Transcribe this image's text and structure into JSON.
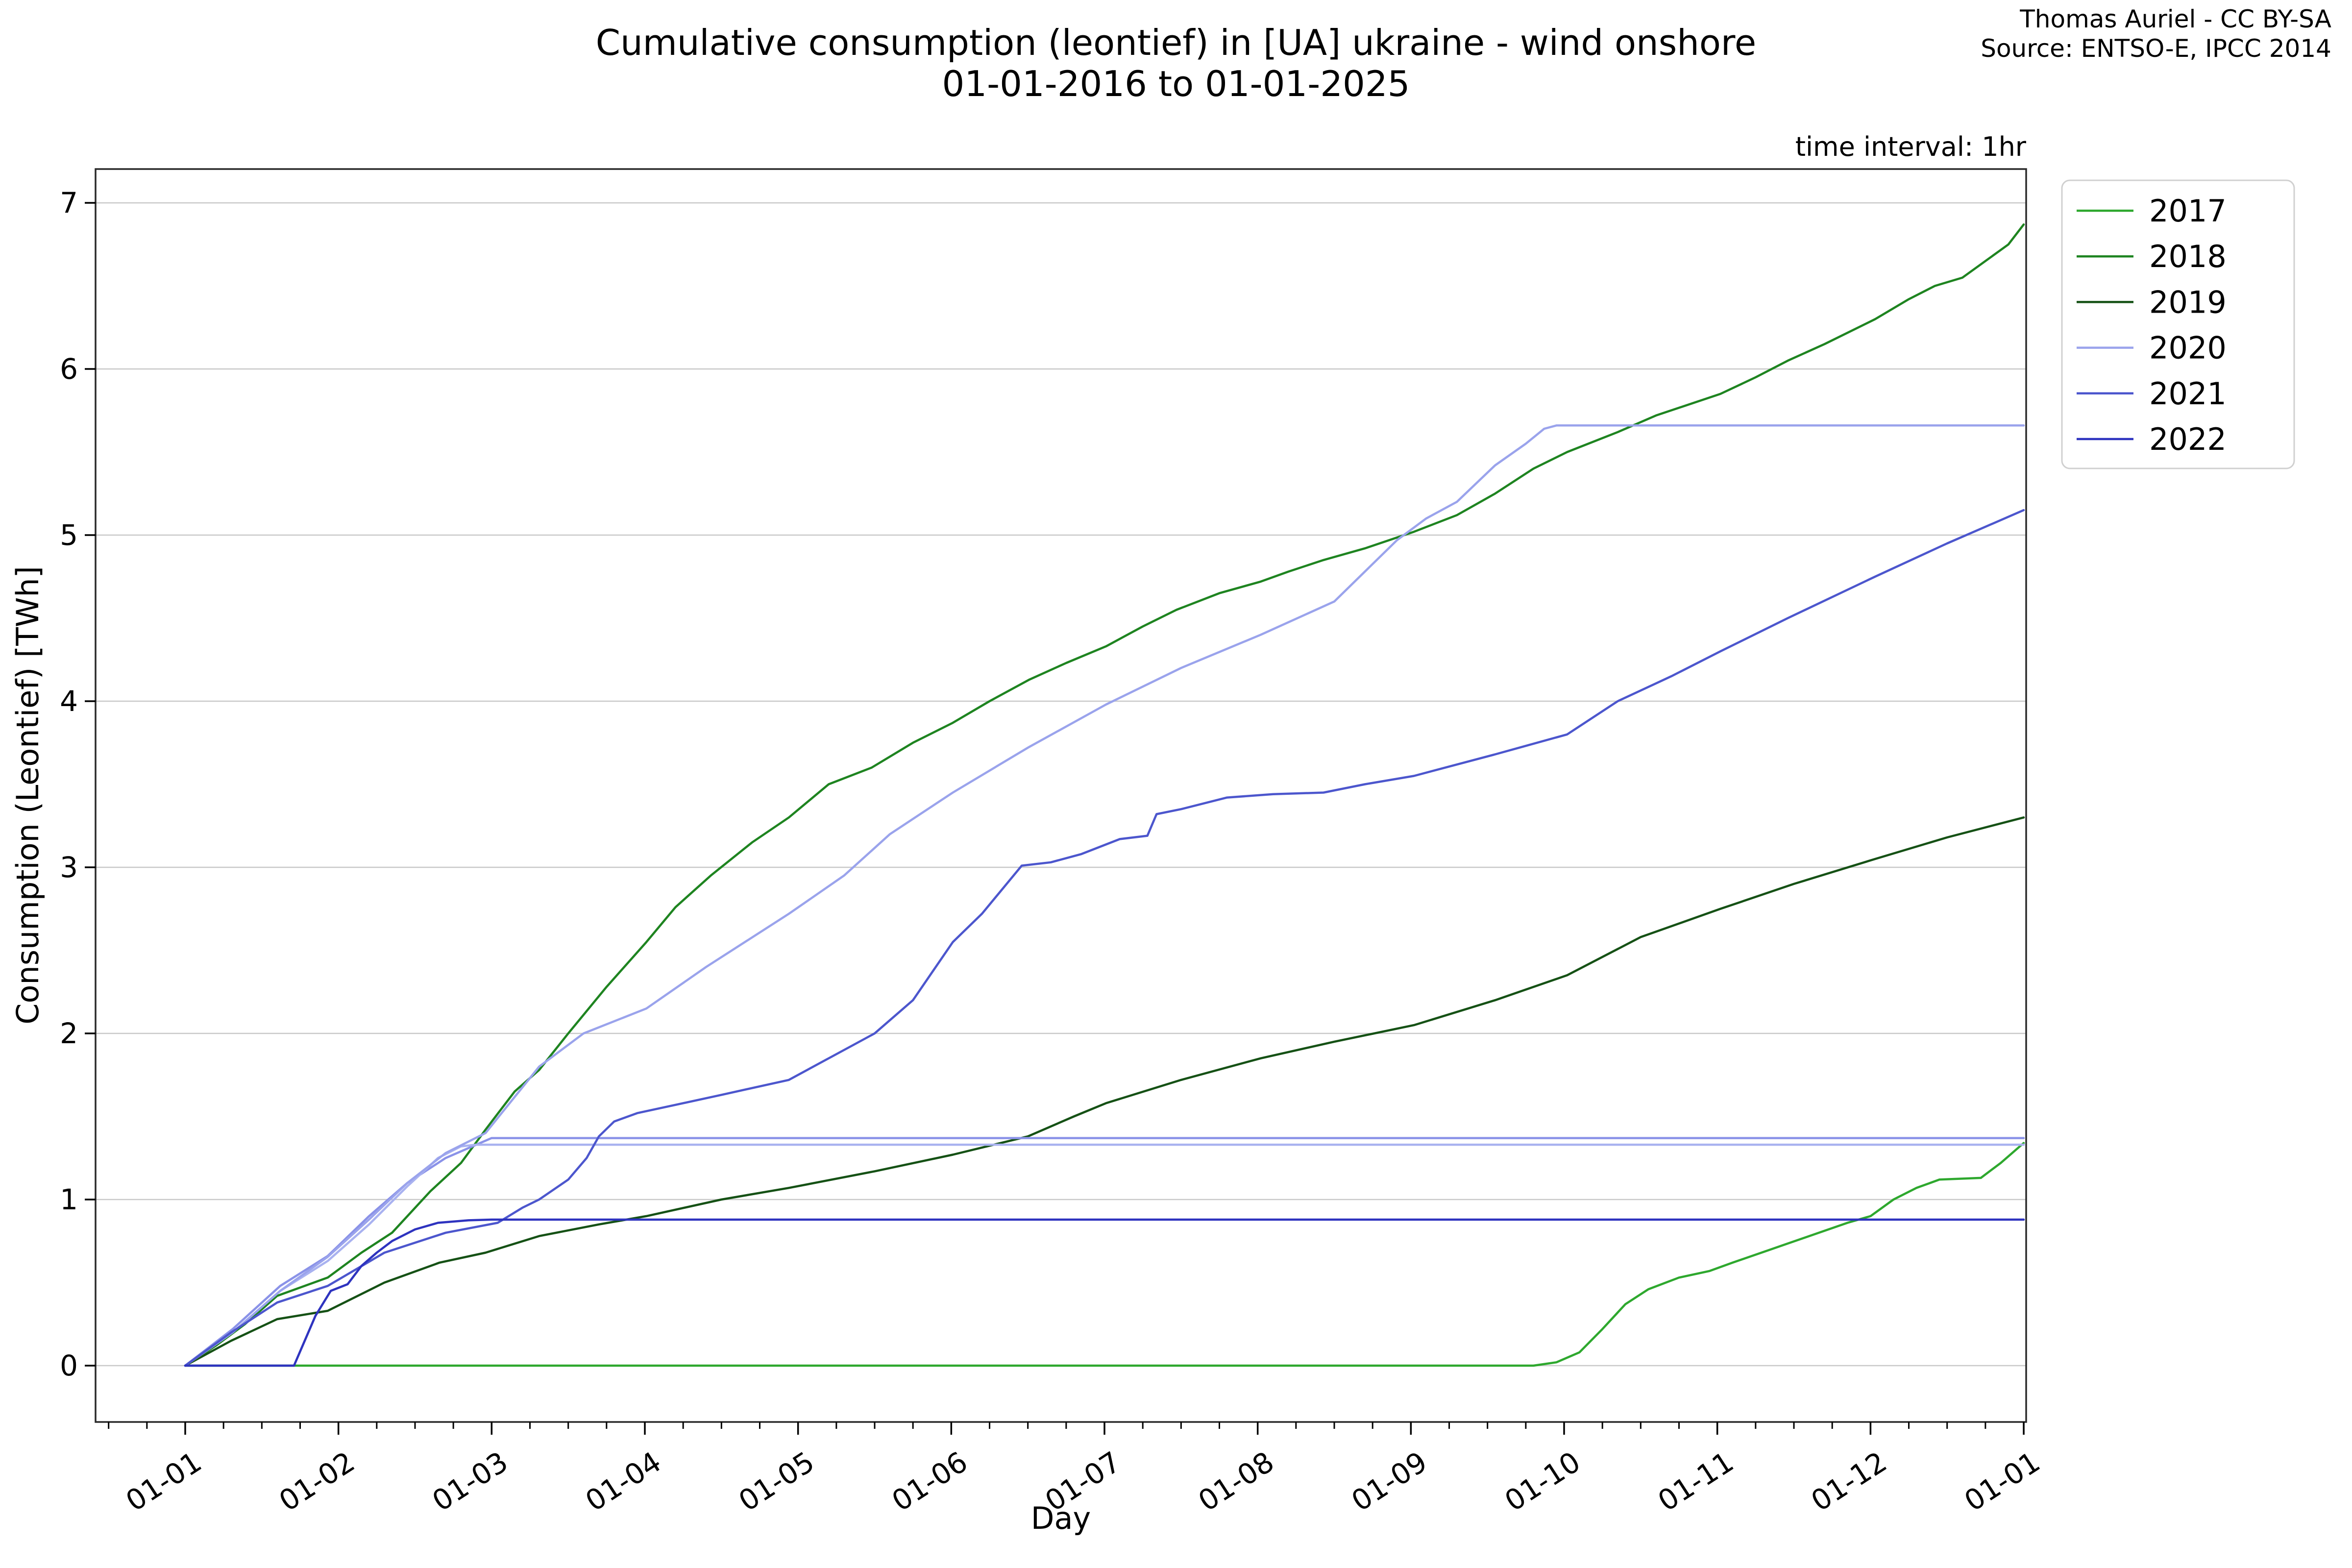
{
  "header": {
    "title_line1": "Cumulative consumption (leontief) in [UA] ukraine - wind onshore",
    "title_line2": "01-01-2016 to 01-01-2025",
    "attribution_line1": "Thomas Auriel - CC BY-SA",
    "attribution_line2": "Source: ENTSO-E, IPCC 2014",
    "time_interval_note": "time interval: 1hr"
  },
  "chart_data": {
    "type": "line",
    "title": "Cumulative consumption (leontief) in [UA] ukraine - wind onshore 01-01-2016 to 01-01-2025",
    "xlabel": "Day",
    "ylabel": "Consumption (Leontief) [TWh]",
    "x_unit": "months from Jan 1 (tick labels are month starts)",
    "x_tick_labels": [
      "01-01",
      "01-02",
      "01-03",
      "01-04",
      "01-05",
      "01-06",
      "01-07",
      "01-08",
      "01-09",
      "01-10",
      "01-11",
      "01-12",
      "01-01"
    ],
    "y_ticks": [
      0,
      1,
      2,
      3,
      4,
      5,
      6,
      7
    ],
    "ylim": [
      -0.34,
      7.2
    ],
    "xlim_months": [
      -0.585,
      12.016
    ],
    "grid": "horizontal",
    "grid_color": "#c9c9c9",
    "legend_position": "upper-right-outside",
    "legend": [
      {
        "label": "2017",
        "color": "#2ea82e"
      },
      {
        "label": "2018",
        "color": "#1e8420"
      },
      {
        "label": "2019",
        "color": "#155115"
      },
      {
        "label": "2020",
        "color": "#9aa3ec"
      },
      {
        "label": "2021",
        "color": "#4c56cd"
      },
      {
        "label": "2022",
        "color": "#2e33bf"
      }
    ],
    "series": [
      {
        "name": "2017",
        "color": "#2ea82e",
        "in_legend": true,
        "points": [
          [
            0,
            0
          ],
          [
            8.8,
            0
          ],
          [
            8.95,
            0.02
          ],
          [
            9.1,
            0.08
          ],
          [
            9.25,
            0.22
          ],
          [
            9.4,
            0.37
          ],
          [
            9.55,
            0.46
          ],
          [
            9.75,
            0.53
          ],
          [
            9.95,
            0.57
          ],
          [
            10.1,
            0.62
          ],
          [
            10.35,
            0.7
          ],
          [
            10.6,
            0.78
          ],
          [
            10.85,
            0.86
          ],
          [
            11.0,
            0.9
          ],
          [
            11.15,
            1.0
          ],
          [
            11.3,
            1.07
          ],
          [
            11.45,
            1.12
          ],
          [
            11.72,
            1.13
          ],
          [
            11.85,
            1.22
          ],
          [
            12,
            1.34
          ]
        ]
      },
      {
        "name": "2018",
        "color": "#1e8420",
        "in_legend": true,
        "points": [
          [
            0,
            0
          ],
          [
            0.2,
            0.12
          ],
          [
            0.39,
            0.25
          ],
          [
            0.6,
            0.42
          ],
          [
            0.93,
            0.53
          ],
          [
            1.15,
            0.68
          ],
          [
            1.35,
            0.8
          ],
          [
            1.6,
            1.05
          ],
          [
            1.8,
            1.22
          ],
          [
            1.96,
            1.42
          ],
          [
            2.15,
            1.65
          ],
          [
            2.31,
            1.78
          ],
          [
            2.5,
            2.0
          ],
          [
            2.75,
            2.28
          ],
          [
            3.01,
            2.55
          ],
          [
            3.2,
            2.76
          ],
          [
            3.43,
            2.95
          ],
          [
            3.7,
            3.15
          ],
          [
            3.94,
            3.3
          ],
          [
            4.2,
            3.5
          ],
          [
            4.48,
            3.6
          ],
          [
            4.75,
            3.75
          ],
          [
            5.01,
            3.87
          ],
          [
            5.25,
            4.0
          ],
          [
            5.51,
            4.13
          ],
          [
            5.75,
            4.23
          ],
          [
            6.01,
            4.33
          ],
          [
            6.25,
            4.45
          ],
          [
            6.47,
            4.55
          ],
          [
            6.75,
            4.65
          ],
          [
            7.02,
            4.72
          ],
          [
            7.2,
            4.78
          ],
          [
            7.43,
            4.85
          ],
          [
            7.7,
            4.92
          ],
          [
            8.02,
            5.02
          ],
          [
            8.3,
            5.12
          ],
          [
            8.55,
            5.25
          ],
          [
            8.8,
            5.4
          ],
          [
            9.02,
            5.5
          ],
          [
            9.35,
            5.62
          ],
          [
            9.6,
            5.72
          ],
          [
            10.02,
            5.85
          ],
          [
            10.25,
            5.95
          ],
          [
            10.46,
            6.05
          ],
          [
            10.7,
            6.15
          ],
          [
            11.03,
            6.3
          ],
          [
            11.25,
            6.42
          ],
          [
            11.42,
            6.5
          ],
          [
            11.6,
            6.55
          ],
          [
            11.75,
            6.65
          ],
          [
            11.9,
            6.75
          ],
          [
            12,
            6.87
          ]
        ]
      },
      {
        "name": "2019",
        "color": "#155115",
        "in_legend": true,
        "points": [
          [
            0,
            0
          ],
          [
            0.3,
            0.15
          ],
          [
            0.6,
            0.28
          ],
          [
            0.93,
            0.33
          ],
          [
            1.3,
            0.5
          ],
          [
            1.66,
            0.62
          ],
          [
            1.96,
            0.68
          ],
          [
            2.31,
            0.78
          ],
          [
            2.7,
            0.85
          ],
          [
            3.01,
            0.9
          ],
          [
            3.5,
            1.0
          ],
          [
            3.94,
            1.07
          ],
          [
            4.5,
            1.17
          ],
          [
            5.01,
            1.27
          ],
          [
            5.5,
            1.38
          ],
          [
            5.8,
            1.5
          ],
          [
            6.01,
            1.58
          ],
          [
            6.5,
            1.72
          ],
          [
            7.02,
            1.85
          ],
          [
            7.5,
            1.95
          ],
          [
            8.02,
            2.05
          ],
          [
            8.55,
            2.2
          ],
          [
            9.02,
            2.35
          ],
          [
            9.5,
            2.58
          ],
          [
            10.02,
            2.75
          ],
          [
            10.5,
            2.9
          ],
          [
            11.03,
            3.05
          ],
          [
            11.5,
            3.18
          ],
          [
            12,
            3.3
          ]
        ]
      },
      {
        "name": "unlabeled_flat_upper",
        "color": "#8a92e8",
        "in_legend": false,
        "points": [
          [
            0,
            0
          ],
          [
            0.31,
            0.22
          ],
          [
            0.62,
            0.48
          ],
          [
            0.93,
            0.66
          ],
          [
            1.2,
            0.9
          ],
          [
            1.45,
            1.1
          ],
          [
            1.7,
            1.25
          ],
          [
            1.9,
            1.33
          ],
          [
            2.0,
            1.37
          ],
          [
            12,
            1.37
          ]
        ]
      },
      {
        "name": "unlabeled_flat_lower",
        "color": "#a9b2f0",
        "in_legend": false,
        "points": [
          [
            0,
            0
          ],
          [
            0.31,
            0.2
          ],
          [
            0.62,
            0.45
          ],
          [
            0.93,
            0.63
          ],
          [
            1.2,
            0.85
          ],
          [
            1.45,
            1.08
          ],
          [
            1.65,
            1.25
          ],
          [
            1.8,
            1.32
          ],
          [
            1.9,
            1.33
          ],
          [
            12,
            1.33
          ]
        ]
      },
      {
        "name": "2020",
        "color": "#9aa3ec",
        "in_legend": true,
        "points": [
          [
            0,
            0
          ],
          [
            0.31,
            0.2
          ],
          [
            0.62,
            0.45
          ],
          [
            0.93,
            0.655
          ],
          [
            1.2,
            0.88
          ],
          [
            1.45,
            1.1
          ],
          [
            1.7,
            1.28
          ],
          [
            1.96,
            1.4
          ],
          [
            2.31,
            1.8
          ],
          [
            2.6,
            2.0
          ],
          [
            3.01,
            2.15
          ],
          [
            3.4,
            2.4
          ],
          [
            3.94,
            2.72
          ],
          [
            4.3,
            2.95
          ],
          [
            4.6,
            3.2
          ],
          [
            5.01,
            3.45
          ],
          [
            5.5,
            3.72
          ],
          [
            6.01,
            3.98
          ],
          [
            6.5,
            4.2
          ],
          [
            7.02,
            4.4
          ],
          [
            7.5,
            4.6
          ],
          [
            7.91,
            4.97
          ],
          [
            8.1,
            5.1
          ],
          [
            8.3,
            5.2
          ],
          [
            8.55,
            5.42
          ],
          [
            8.75,
            5.55
          ],
          [
            8.87,
            5.64
          ],
          [
            8.95,
            5.66
          ],
          [
            12,
            5.66
          ]
        ]
      },
      {
        "name": "2021",
        "color": "#4c56cd",
        "in_legend": true,
        "points": [
          [
            0,
            0
          ],
          [
            0.3,
            0.2
          ],
          [
            0.6,
            0.38
          ],
          [
            0.93,
            0.48
          ],
          [
            1.3,
            0.68
          ],
          [
            1.7,
            0.8
          ],
          [
            2.04,
            0.86
          ],
          [
            2.2,
            0.95
          ],
          [
            2.31,
            1.0
          ],
          [
            2.5,
            1.12
          ],
          [
            2.62,
            1.25
          ],
          [
            2.7,
            1.38
          ],
          [
            2.8,
            1.47
          ],
          [
            2.95,
            1.52
          ],
          [
            3.2,
            1.57
          ],
          [
            3.5,
            1.63
          ],
          [
            3.94,
            1.72
          ],
          [
            4.2,
            1.85
          ],
          [
            4.5,
            2.0
          ],
          [
            4.75,
            2.2
          ],
          [
            5.01,
            2.55
          ],
          [
            5.2,
            2.72
          ],
          [
            5.46,
            3.01
          ],
          [
            5.65,
            3.03
          ],
          [
            5.85,
            3.08
          ],
          [
            6.1,
            3.17
          ],
          [
            6.28,
            3.19
          ],
          [
            6.34,
            3.32
          ],
          [
            6.5,
            3.35
          ],
          [
            6.8,
            3.42
          ],
          [
            7.1,
            3.44
          ],
          [
            7.43,
            3.45
          ],
          [
            7.7,
            3.5
          ],
          [
            8.02,
            3.55
          ],
          [
            8.55,
            3.68
          ],
          [
            9.02,
            3.8
          ],
          [
            9.35,
            4.0
          ],
          [
            9.7,
            4.15
          ],
          [
            10.02,
            4.3
          ],
          [
            10.46,
            4.5
          ],
          [
            11.03,
            4.75
          ],
          [
            11.5,
            4.95
          ],
          [
            12,
            5.15
          ]
        ]
      },
      {
        "name": "2022",
        "color": "#2e33bf",
        "in_legend": true,
        "points": [
          [
            0,
            0
          ],
          [
            0.71,
            0
          ],
          [
            0.78,
            0.15
          ],
          [
            0.85,
            0.3
          ],
          [
            0.95,
            0.45
          ],
          [
            1.06,
            0.49
          ],
          [
            1.15,
            0.6
          ],
          [
            1.25,
            0.68
          ],
          [
            1.35,
            0.75
          ],
          [
            1.5,
            0.82
          ],
          [
            1.65,
            0.86
          ],
          [
            1.85,
            0.875
          ],
          [
            2.0,
            0.879
          ],
          [
            12,
            0.879
          ]
        ]
      }
    ]
  },
  "colors": {
    "background": "#ffffff",
    "spine": "#2a2a2a",
    "grid": "#c9c9c9",
    "tick": "#000000",
    "legend_border": "#d0d0d0"
  }
}
